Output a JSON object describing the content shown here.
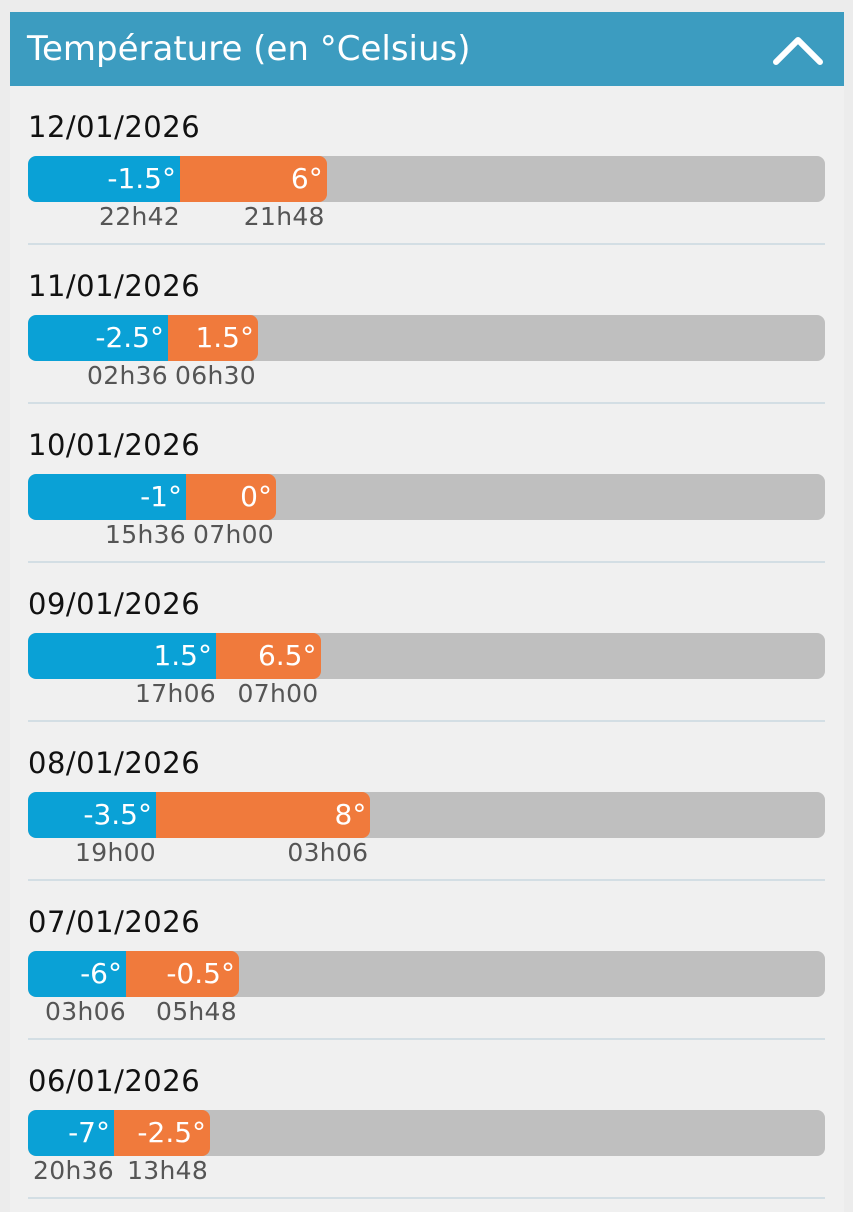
{
  "header": {
    "title": "Température (en °Celsius)",
    "collapse_icon": "chevron-up-icon"
  },
  "colors": {
    "header_bg": "#3c9cc0",
    "min_bar": "#0aa1d6",
    "max_bar": "#f07a3c",
    "track": "#bfbfbf"
  },
  "days": [
    {
      "date": "12/01/2026",
      "min": -1.5,
      "min_label": "-1.5°",
      "min_time": "22h42",
      "max": 6,
      "max_label": "6°",
      "max_time": "21h48"
    },
    {
      "date": "11/01/2026",
      "min": -2.5,
      "min_label": "-2.5°",
      "min_time": "02h36",
      "max": 1.5,
      "max_label": "1.5°",
      "max_time": "06h30"
    },
    {
      "date": "10/01/2026",
      "min": -1,
      "min_label": "-1°",
      "min_time": "15h36",
      "max": 0,
      "max_label": "0°",
      "max_time": "07h00"
    },
    {
      "date": "09/01/2026",
      "min": 1.5,
      "min_label": "1.5°",
      "min_time": "17h06",
      "max": 6.5,
      "max_label": "6.5°",
      "max_time": "07h00"
    },
    {
      "date": "08/01/2026",
      "min": -3.5,
      "min_label": "-3.5°",
      "min_time": "19h00",
      "max": 8,
      "max_label": "8°",
      "max_time": "03h06"
    },
    {
      "date": "07/01/2026",
      "min": -6,
      "min_label": "-6°",
      "min_time": "03h06",
      "max": -0.5,
      "max_label": "-0.5°",
      "max_time": "05h48"
    },
    {
      "date": "06/01/2026",
      "min": -7,
      "min_label": "-7°",
      "min_time": "20h36",
      "max": -2.5,
      "max_label": "-2.5°",
      "max_time": "13h48"
    }
  ]
}
